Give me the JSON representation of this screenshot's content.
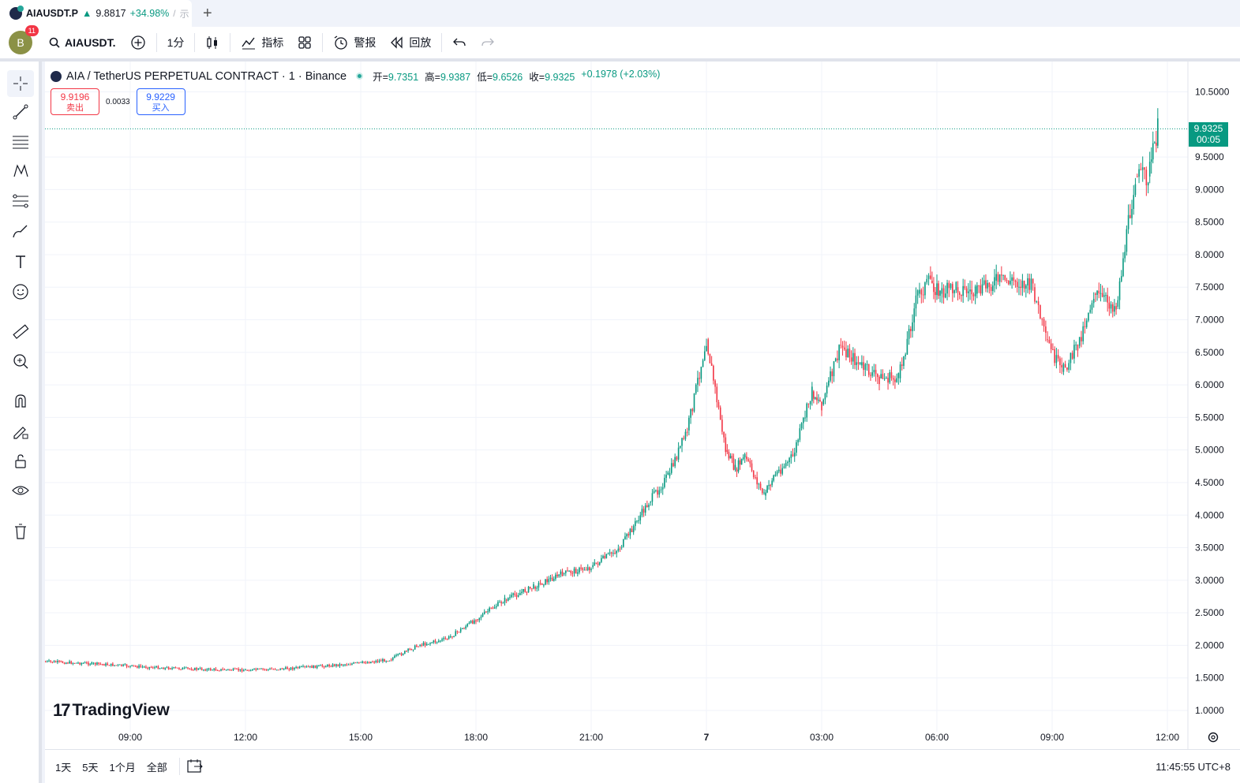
{
  "tab": {
    "symbol": "AIAUSDT.P",
    "arrow": "▲",
    "price": "9.8817",
    "change": "+34.98%",
    "sep": "/",
    "more": "示"
  },
  "toolbar": {
    "avatar_letter": "B",
    "avatar_badge": "11",
    "symbol": "AIAUSDT.",
    "interval": "1分",
    "indicators": "指标",
    "alert": "警报",
    "replay": "回放"
  },
  "legend": {
    "title": "AIA / TetherUS PERPETUAL CONTRACT · 1 · Binance",
    "open_label": "开=",
    "open": "9.7351",
    "high_label": "高=",
    "high": "9.9387",
    "low_label": "低=",
    "low": "9.6526",
    "close_label": "收=",
    "close": "9.9325",
    "change": "+0.1978 (+2.03%)"
  },
  "trade": {
    "sell_price": "9.9196",
    "sell_label": "卖出",
    "spread": "0.0033",
    "buy_price": "9.9229",
    "buy_label": "买入"
  },
  "price_tag": {
    "price": "9.9325",
    "countdown": "00:05"
  },
  "bottom": {
    "ranges": [
      "1天",
      "5天",
      "1个月",
      "全部"
    ],
    "clock": "11:45:55 UTC+8"
  },
  "brand": "TradingView",
  "colors": {
    "up": "#089981",
    "down": "#f23645",
    "accent": "#2962ff"
  },
  "chart_data": {
    "type": "line",
    "title": "AIA / TetherUS PERPETUAL CONTRACT · 1 · Binance",
    "y_ticks": [
      "10.5000",
      "9.5000",
      "9.0000",
      "8.5000",
      "8.0000",
      "7.5000",
      "7.0000",
      "6.5000",
      "6.0000",
      "5.5000",
      "5.0000",
      "4.5000",
      "4.0000",
      "3.5000",
      "3.0000",
      "2.5000",
      "2.0000",
      "1.5000",
      "1.0000"
    ],
    "x_ticks": [
      "09:00",
      "12:00",
      "15:00",
      "18:00",
      "21:00",
      "7",
      "03:00",
      "06:00",
      "09:00",
      "12:00"
    ],
    "ylim": [
      0.8,
      10.9
    ],
    "x": [
      "06:45",
      "08:00",
      "09:00",
      "10:00",
      "11:00",
      "12:00",
      "13:00",
      "14:00",
      "15:00",
      "15:45",
      "16:30",
      "17:15",
      "18:00",
      "18:45",
      "19:30",
      "20:15",
      "21:00",
      "21:45",
      "22:30",
      "23:00",
      "23:30",
      "00:00",
      "00:30",
      "00:45",
      "01:00",
      "01:30",
      "01:45",
      "02:15",
      "02:45",
      "03:00",
      "03:30",
      "04:00",
      "04:30",
      "05:00",
      "05:30",
      "05:50",
      "06:05",
      "06:30",
      "07:00",
      "07:30",
      "08:00",
      "08:30",
      "08:50",
      "09:15",
      "09:40",
      "10:05",
      "10:40",
      "11:10",
      "11:30",
      "11:45"
    ],
    "series": [
      {
        "values": [
          1.75,
          1.72,
          1.68,
          1.65,
          1.63,
          1.62,
          1.64,
          1.68,
          1.73,
          1.78,
          2.0,
          2.1,
          2.4,
          2.7,
          2.9,
          3.1,
          3.2,
          3.5,
          4.2,
          4.6,
          5.3,
          6.7,
          5.0,
          4.7,
          4.9,
          4.3,
          4.6,
          4.9,
          5.9,
          5.7,
          6.6,
          6.3,
          6.1,
          6.1,
          7.4,
          7.6,
          7.4,
          7.5,
          7.4,
          7.6,
          7.6,
          7.5,
          6.7,
          6.2,
          6.6,
          7.4,
          7.2,
          9.2,
          9.2,
          9.93
        ]
      }
    ]
  }
}
